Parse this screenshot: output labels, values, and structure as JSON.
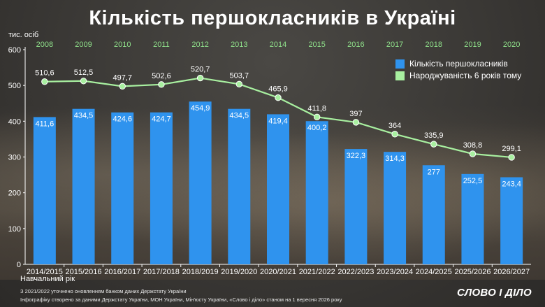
{
  "header": {
    "title": "Кількість першокласників в Україні",
    "unit": "тис. осіб",
    "x_title": "Навчальний рік"
  },
  "legend": {
    "bars_label": "Кількість першокласників",
    "line_label": "Народжуваність 6 років тому"
  },
  "footer": {
    "note1": "З 2021/2022 уточнено оновленням банком даних Держстату України",
    "note2": "Інфографіку створено за даними Держстату України, МОН України, Мін'юсту України, «Слово і діло» станом на 1 вересня 2026 року",
    "logo": "СЛОВО І ДІЛО"
  },
  "colors": {
    "bar": "#2f93ee",
    "line": "#a8f0a0",
    "birth_year_text": "#8fe08a",
    "text": "#ffffff"
  },
  "chart_data": {
    "type": "bar",
    "title": "Кількість першокласників в Україні",
    "ylabel": "тис. осіб",
    "xlabel": "Навчальний рік",
    "ylim": [
      0,
      600
    ],
    "yticks": [
      0,
      100,
      200,
      300,
      400,
      500,
      600
    ],
    "grid": false,
    "legend_position": "top-right",
    "categories": [
      "2014/2015",
      "2015/2016",
      "2016/2017",
      "2017/2018",
      "2018/2019",
      "2019/2020",
      "2020/2021",
      "2021/2022",
      "2022/2023",
      "2023/2024",
      "2024/2025",
      "2025/2026",
      "2026/2027"
    ],
    "birth_years": [
      "2008",
      "2009",
      "2010",
      "2011",
      "2012",
      "2013",
      "2014",
      "2015",
      "2016",
      "2017",
      "2018",
      "2019",
      "2020"
    ],
    "series": [
      {
        "name": "Кількість першокласників",
        "type": "bar",
        "values": [
          411.6,
          434.5,
          424.6,
          424.7,
          454.9,
          434.5,
          419.4,
          400.2,
          322.3,
          314.3,
          277,
          252.5,
          243.4
        ],
        "labels": [
          "411,6",
          "434,5",
          "424,6",
          "424,7",
          "454,9",
          "434,5",
          "419,4",
          "400,2",
          "322,3",
          "314,3",
          "277",
          "252,5",
          "243,4"
        ]
      },
      {
        "name": "Народжуваність 6 років тому",
        "type": "line",
        "values": [
          510.6,
          512.5,
          497.7,
          502.6,
          520.7,
          503.7,
          465.9,
          411.8,
          397,
          364,
          335.9,
          308.8,
          299.1
        ],
        "labels": [
          "510,6",
          "512,5",
          "497,7",
          "502,6",
          "520,7",
          "503,7",
          "465,9",
          "411,8",
          "397",
          "364",
          "335,9",
          "308,8",
          "299,1"
        ]
      }
    ]
  }
}
